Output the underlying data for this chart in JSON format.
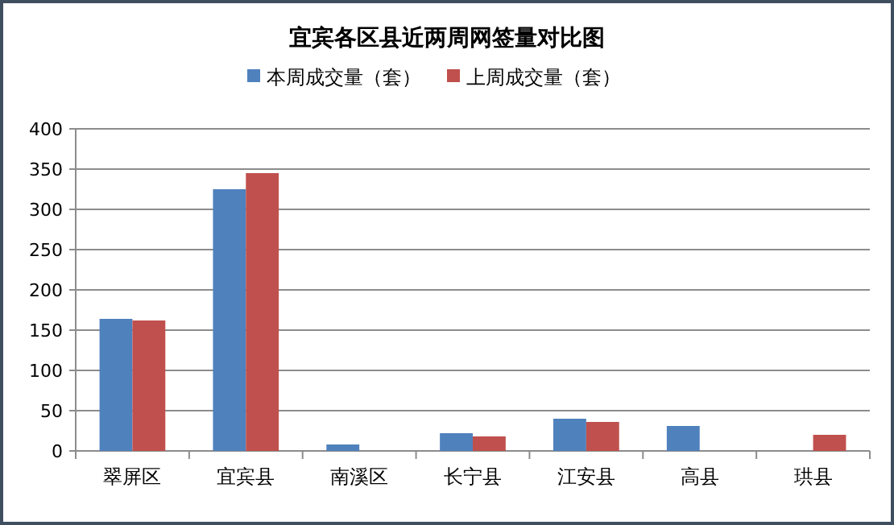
{
  "chart_data": {
    "type": "bar",
    "title": "宜宾各区县近两周网签量对比图",
    "categories": [
      "翠屏区",
      "宜宾县",
      "南溪区",
      "长宁县",
      "江安县",
      "高县",
      "珙县"
    ],
    "series": [
      {
        "name": "本周成交量（套）",
        "color": "#4f81bd",
        "values": [
          164,
          325,
          8,
          22,
          40,
          31,
          null
        ]
      },
      {
        "name": "上周成交量（套）",
        "color": "#c0504d",
        "values": [
          162,
          345,
          0,
          18,
          36,
          null,
          20
        ]
      }
    ],
    "ylim": [
      0,
      400
    ],
    "yticks": [
      0,
      50,
      100,
      150,
      200,
      250,
      300,
      350,
      400
    ],
    "grid": "y",
    "legend": "top"
  }
}
